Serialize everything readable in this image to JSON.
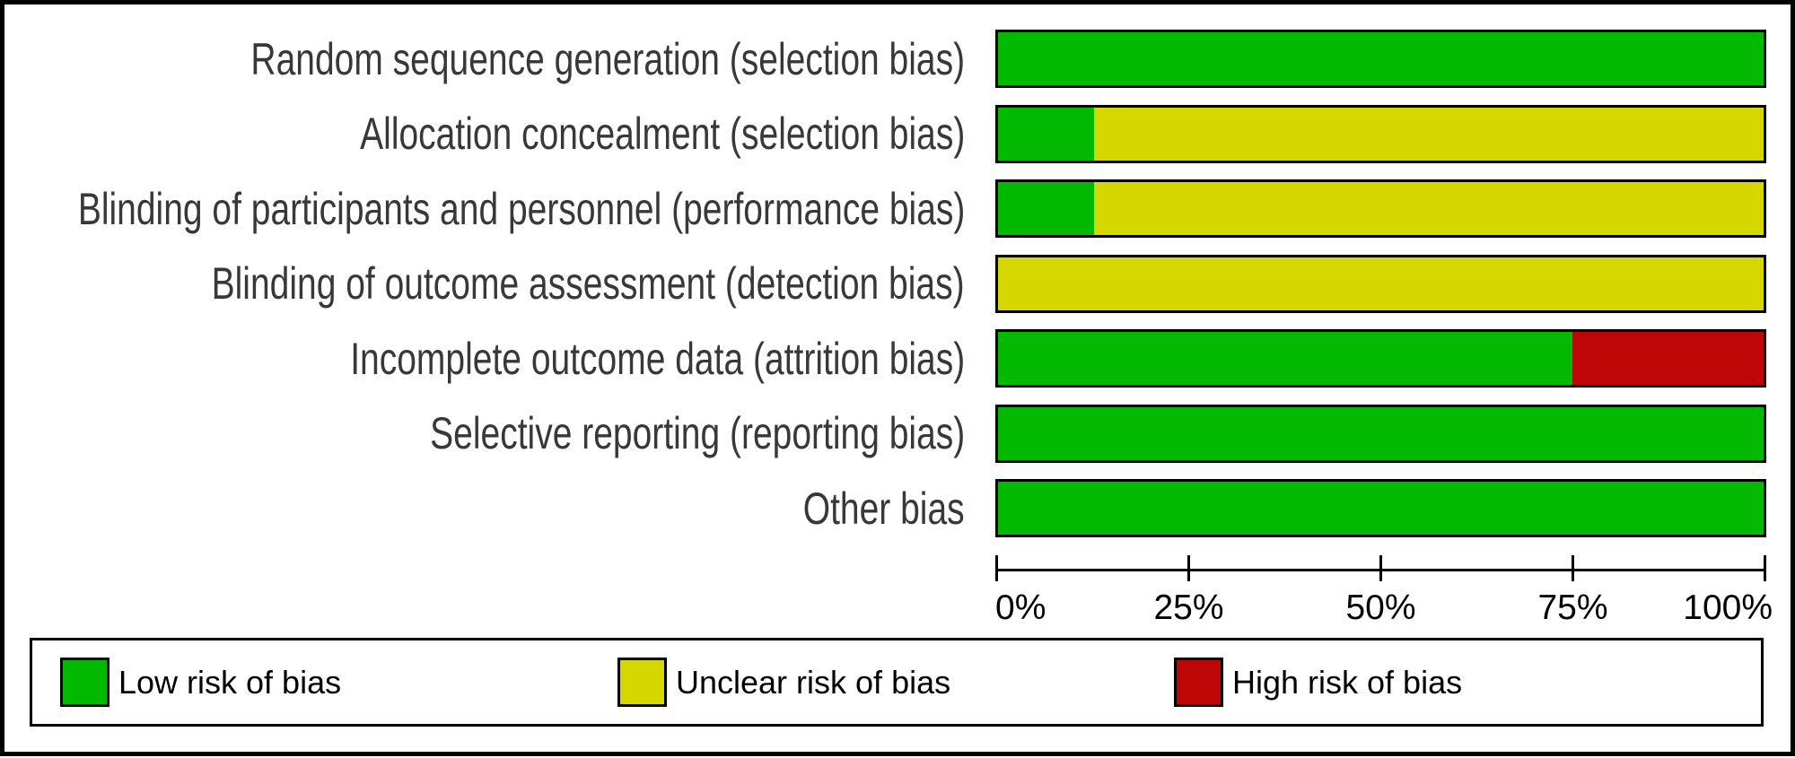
{
  "chart_data": {
    "type": "bar",
    "variant": "horizontal-stacked",
    "title": "",
    "xlabel": "",
    "ylabel": "",
    "xlim": [
      0,
      100
    ],
    "grid": false,
    "legend_position": "bottom",
    "categories": [
      "Random sequence generation (selection bias)",
      "Allocation concealment (selection bias)",
      "Blinding of participants and personnel (performance bias)",
      "Blinding of outcome assessment (detection bias)",
      "Incomplete outcome data (attrition bias)",
      "Selective reporting (reporting bias)",
      "Other bias"
    ],
    "series": [
      {
        "name": "Low risk of bias",
        "color": "#02B902",
        "values": [
          100,
          12.5,
          12.5,
          0,
          75,
          100,
          100
        ]
      },
      {
        "name": "Unclear risk of bias",
        "color": "#D7D700",
        "values": [
          0,
          87.5,
          87.5,
          100,
          0,
          0,
          0
        ]
      },
      {
        "name": "High risk of bias",
        "color": "#BE0505",
        "values": [
          0,
          0,
          0,
          0,
          25,
          0,
          0
        ]
      }
    ],
    "x_tick_labels": [
      "0%",
      "25%",
      "50%",
      "75%",
      "100%"
    ],
    "legend": [
      "Low risk of bias",
      "Unclear risk of bias",
      "High risk of bias"
    ]
  }
}
